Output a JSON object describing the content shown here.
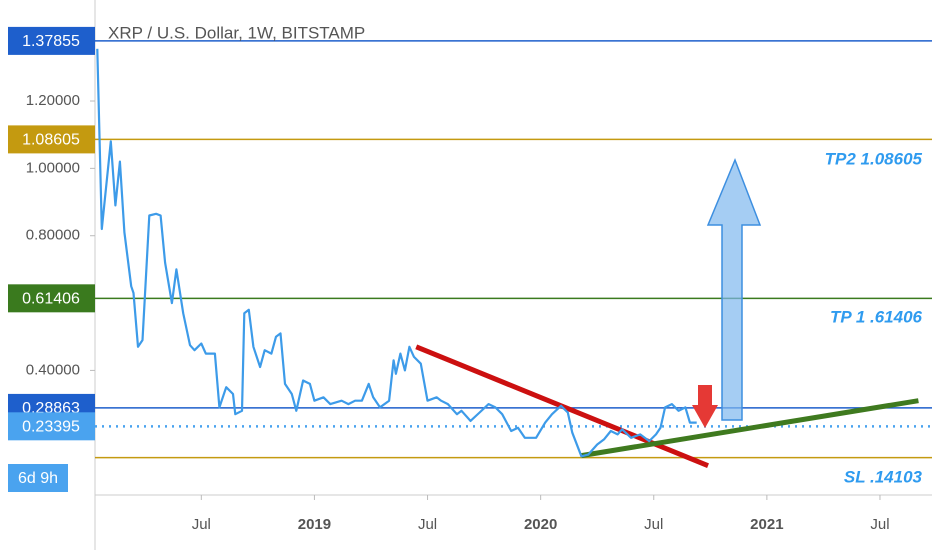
{
  "chart_data": {
    "type": "line",
    "title": "XRP / U.S. Dollar, 1W, BITSTAMP",
    "ylim": [
      0.03,
      1.5
    ],
    "yticks": [
      {
        "value": 1.2,
        "label": "1.20000"
      },
      {
        "value": 1.0,
        "label": "1.00000"
      },
      {
        "value": 0.8,
        "label": "0.80000"
      },
      {
        "value": 0.4,
        "label": "0.40000"
      }
    ],
    "xlim": [
      2018.03,
      2021.73
    ],
    "xticks": [
      {
        "value": 2018.5,
        "label": "Jul"
      },
      {
        "value": 2019,
        "label": "2019"
      },
      {
        "value": 2019.5,
        "label": "Jul"
      },
      {
        "value": 2020,
        "label": "2020"
      },
      {
        "value": 2020.5,
        "label": "Jul"
      },
      {
        "value": 2021,
        "label": "2021"
      },
      {
        "value": 2021.5,
        "label": "Jul"
      }
    ],
    "series": [
      {
        "color": "#3d9be9",
        "x": [
          2018.04,
          2018.06,
          2018.08,
          2018.1,
          2018.12,
          2018.14,
          2018.16,
          2018.19,
          2018.2,
          2018.22,
          2018.24,
          2018.27,
          2018.3,
          2018.32,
          2018.34,
          2018.37,
          2018.39,
          2018.42,
          2018.45,
          2018.47,
          2018.5,
          2018.52,
          2018.56,
          2018.58,
          2018.61,
          2018.64,
          2018.65,
          2018.68,
          2018.69,
          2018.71,
          2018.73,
          2018.76,
          2018.78,
          2018.81,
          2018.83,
          2018.85,
          2018.87,
          2018.9,
          2018.92,
          2018.95,
          2018.98,
          2019.0,
          2019.04,
          2019.07,
          2019.12,
          2019.15,
          2019.18,
          2019.21,
          2019.24,
          2019.26,
          2019.29,
          2019.33,
          2019.35,
          2019.36,
          2019.38,
          2019.4,
          2019.42,
          2019.44,
          2019.47,
          2019.5,
          2019.54,
          2019.56,
          2019.59,
          2019.63,
          2019.65,
          2019.69,
          2019.73,
          2019.77,
          2019.8,
          2019.83,
          2019.87,
          2019.9,
          2019.93,
          2019.98,
          2020.02,
          2020.05,
          2020.09,
          2020.12,
          2020.14,
          2020.18,
          2020.21,
          2020.25,
          2020.28,
          2020.31,
          2020.34,
          2020.36,
          2020.4,
          2020.44,
          2020.48,
          2020.51,
          2020.53,
          2020.55,
          2020.58,
          2020.61,
          2020.64,
          2020.66,
          2020.69
        ],
        "values": [
          1.355,
          0.82,
          0.95,
          1.08,
          0.89,
          1.02,
          0.81,
          0.65,
          0.63,
          0.47,
          0.49,
          0.86,
          0.865,
          0.86,
          0.72,
          0.6,
          0.7,
          0.57,
          0.475,
          0.46,
          0.48,
          0.45,
          0.45,
          0.29,
          0.35,
          0.33,
          0.27,
          0.28,
          0.57,
          0.58,
          0.47,
          0.41,
          0.46,
          0.45,
          0.5,
          0.51,
          0.36,
          0.33,
          0.28,
          0.37,
          0.36,
          0.31,
          0.32,
          0.3,
          0.31,
          0.3,
          0.31,
          0.31,
          0.36,
          0.32,
          0.29,
          0.31,
          0.43,
          0.39,
          0.45,
          0.4,
          0.47,
          0.44,
          0.42,
          0.31,
          0.32,
          0.31,
          0.3,
          0.27,
          0.28,
          0.25,
          0.275,
          0.3,
          0.29,
          0.27,
          0.22,
          0.23,
          0.2,
          0.2,
          0.245,
          0.27,
          0.295,
          0.275,
          0.215,
          0.145,
          0.15,
          0.18,
          0.195,
          0.22,
          0.21,
          0.225,
          0.2,
          0.21,
          0.19,
          0.21,
          0.23,
          0.29,
          0.3,
          0.28,
          0.29,
          0.245,
          0.245
        ]
      }
    ],
    "levels": [
      {
        "value": 1.37855,
        "color": "#1e5fcc",
        "boxed": true
      },
      {
        "value": 1.08605,
        "color": "#c49a10",
        "boxed": true
      },
      {
        "value": 0.61406,
        "color": "#3a7a1e",
        "boxed": true
      },
      {
        "value": 0.28863,
        "color": "#1e5fcc",
        "boxed": true
      },
      {
        "value": 0.23395,
        "color": "#4aa3ef",
        "boxed": true,
        "dotted": true
      },
      {
        "value": 0.14103,
        "color": "#c49a10",
        "boxed": false
      }
    ],
    "trendlines": [
      {
        "x": [
          2019.45,
          2020.74
        ],
        "values": [
          0.47,
          0.117
        ],
        "color": "#cc1010"
      },
      {
        "x": [
          2020.18,
          2021.67
        ],
        "values": [
          0.147,
          0.31
        ],
        "color": "#3f7a1f"
      }
    ],
    "annotations": [
      "TP2 1.08605",
      "TP 1 .61406",
      "SL .14103"
    ],
    "countdown": "6d 9h"
  }
}
